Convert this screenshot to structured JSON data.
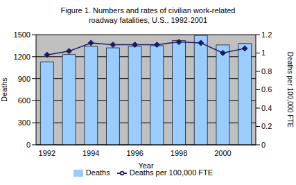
{
  "chart_data": {
    "type": "bar",
    "title": "Figure 1. Numbers and rates of civilian work-related\nroadway fatalities, U.S., 1992-2001",
    "x_label": "Year",
    "y_label": "Deaths",
    "y2_label": "Deaths per 100,000 FTE",
    "categories": [
      "1992",
      null,
      "1994",
      null,
      "1996",
      null,
      "1998",
      null,
      "2000",
      null
    ],
    "series": [
      {
        "name": "Deaths",
        "type": "bar",
        "color": "#99ccff",
        "values": [
          1130,
          1230,
          1340,
          1320,
          1340,
          1350,
          1420,
          1490,
          1360,
          1380
        ]
      },
      {
        "name": "Deaths per 100,000 FTE",
        "type": "line",
        "color": "#1a1a66",
        "marker": "diamond",
        "axis": "y2",
        "values": [
          0.98,
          1.02,
          1.11,
          1.09,
          1.09,
          1.09,
          1.12,
          1.11,
          1.0,
          1.05
        ]
      }
    ],
    "ylim": [
      0,
      1500
    ],
    "yticks": [
      0,
      300,
      600,
      900,
      1200,
      1500
    ],
    "y2lim": [
      0,
      1.2
    ],
    "y2ticks": [
      0,
      0.2,
      0.4,
      0.6,
      0.8,
      1,
      1.2
    ],
    "grid": true,
    "legend": "bottom"
  }
}
